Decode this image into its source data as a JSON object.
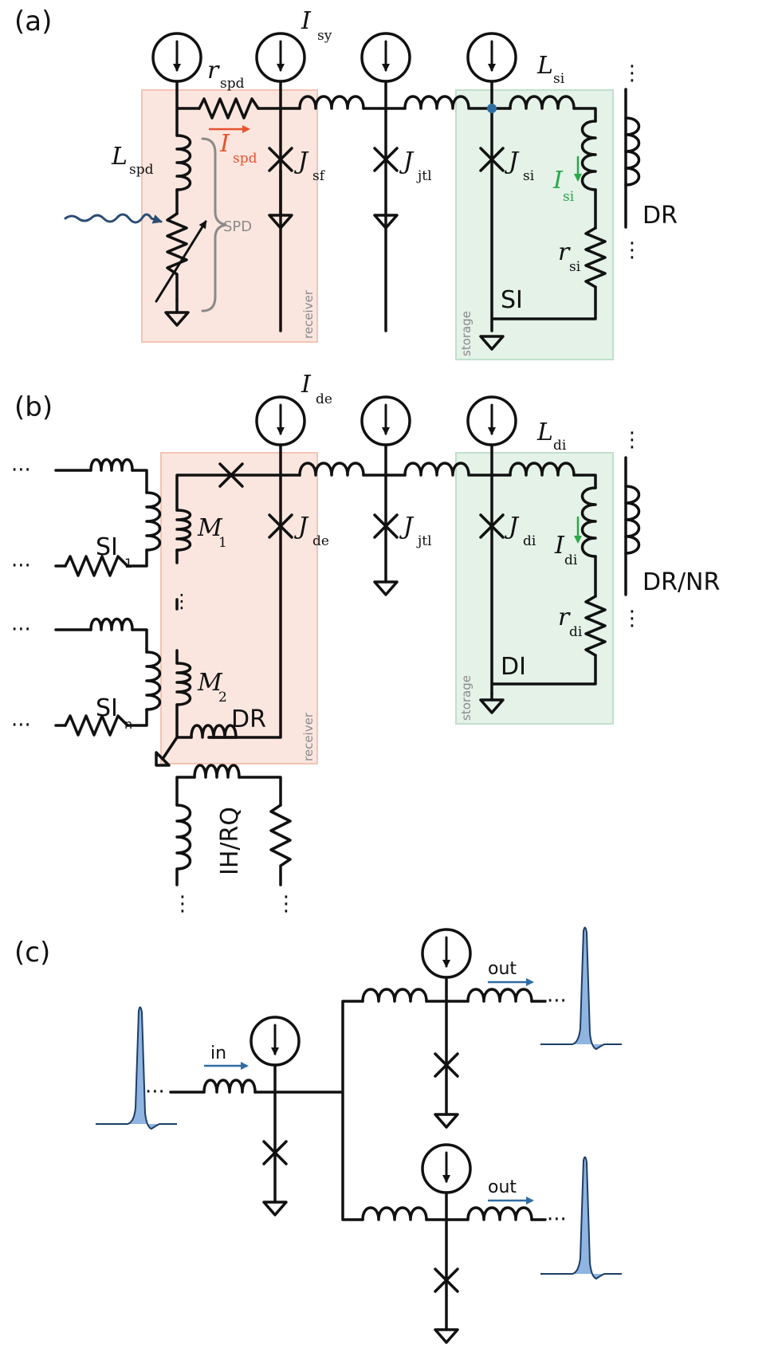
{
  "panels": {
    "a": {
      "tag": "(a)",
      "labels": {
        "I_sy": {
          "main": "I",
          "sub": "sy"
        },
        "r_spd": {
          "main": "r",
          "sub": "spd"
        },
        "L_spd": {
          "main": "L",
          "sub": "spd"
        },
        "I_spd": {
          "main": "I",
          "sub": "spd"
        },
        "J_sf": {
          "main": "J",
          "sub": "sf"
        },
        "J_jtl": {
          "main": "J",
          "sub": "jtl"
        },
        "J_si": {
          "main": "J",
          "sub": "si"
        },
        "L_si": {
          "main": "L",
          "sub": "si"
        },
        "I_si": {
          "main": "I",
          "sub": "si"
        },
        "r_si": {
          "main": "r",
          "sub": "si"
        }
      },
      "spd": "SPD",
      "dr": "DR",
      "si": "SI",
      "receiver": "receiver",
      "storage": "storage"
    },
    "b": {
      "tag": "(b)",
      "labels": {
        "I_de": {
          "main": "I",
          "sub": "de"
        },
        "J_de": {
          "main": "J",
          "sub": "de"
        },
        "J_jtl": {
          "main": "J",
          "sub": "jtl"
        },
        "J_di": {
          "main": "J",
          "sub": "di"
        },
        "L_di": {
          "main": "L",
          "sub": "di"
        },
        "I_di": {
          "main": "I",
          "sub": "di"
        },
        "r_di": {
          "main": "r",
          "sub": "di"
        },
        "M_1": {
          "main": "M",
          "sub": "1"
        },
        "M_2": {
          "main": "M",
          "sub": "2"
        }
      },
      "si_1": {
        "main": "SI",
        "sub": "1"
      },
      "si_n": {
        "main": "SI",
        "sub": "n"
      },
      "dr": "DR",
      "drnr": "DR/NR",
      "di": "DI",
      "ihrq": "IH/RQ",
      "receiver": "receiver",
      "storage": "storage"
    },
    "c": {
      "tag": "(c)",
      "in": "in",
      "out_top": "out",
      "out_bottom": "out"
    }
  },
  "colors": {
    "receiver_fill": "#fbe6df",
    "receiver_stroke": "#f2c4b4",
    "storage_fill": "#e4f2e8",
    "storage_stroke": "#bfe0ca",
    "accent_red": "#e8532f",
    "accent_green": "#2aa84a",
    "accent_blue": "#2f6da3",
    "pulse_fill": "#8fb5e0",
    "pulse_stroke": "#1d3d66",
    "photon": "#2c4d73"
  }
}
